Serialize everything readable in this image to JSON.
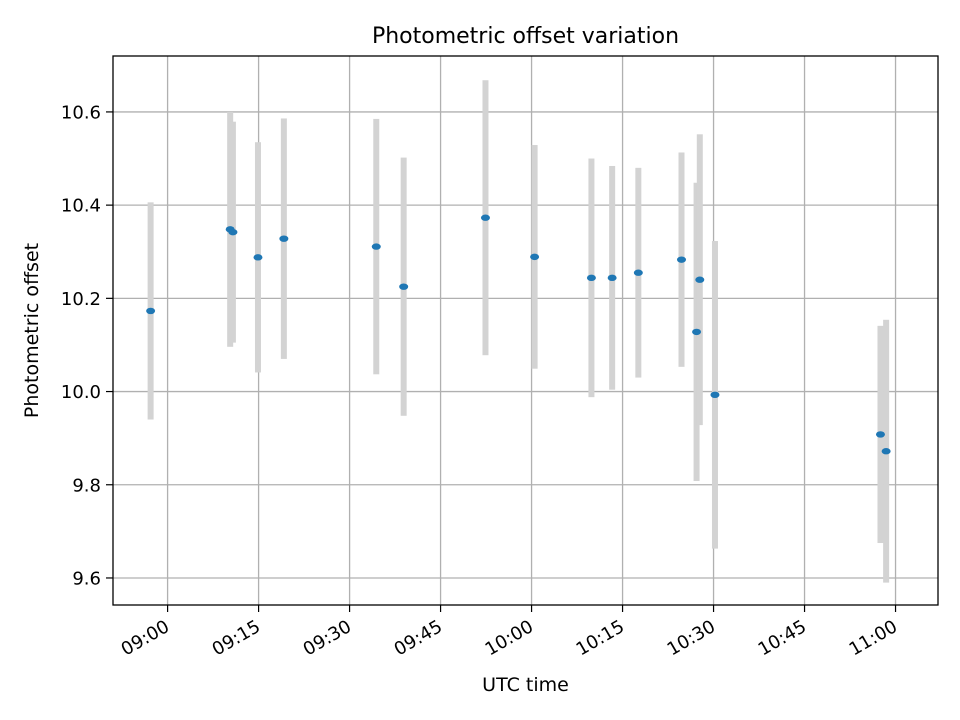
{
  "chart_data": {
    "type": "scatter",
    "title": "Photometric offset variation",
    "xlabel": "UTC time",
    "ylabel": "Photometric offset",
    "x_axis_type": "time",
    "xlim": [
      "08:51",
      "11:07"
    ],
    "ylim": [
      9.542,
      10.72
    ],
    "x_ticks": [
      "09:00",
      "09:15",
      "09:30",
      "09:45",
      "10:00",
      "10:15",
      "10:30",
      "10:45",
      "11:00"
    ],
    "y_ticks": [
      9.6,
      9.8,
      10.0,
      10.2,
      10.4,
      10.6
    ],
    "grid": true,
    "point_color": "#1f77b4",
    "errorbar_color": "#d3d3d3",
    "series": [
      {
        "points": [
          {
            "t": "08:57:12",
            "y": 10.173,
            "err": 0.233
          },
          {
            "t": "09:10:19",
            "y": 10.348,
            "err": 0.252
          },
          {
            "t": "09:10:46",
            "y": 10.342,
            "err": 0.237
          },
          {
            "t": "09:14:54",
            "y": 10.288,
            "err": 0.247
          },
          {
            "t": "09:19:10",
            "y": 10.328,
            "err": 0.258
          },
          {
            "t": "09:34:24",
            "y": 10.311,
            "err": 0.274
          },
          {
            "t": "09:38:55",
            "y": 10.225,
            "err": 0.277
          },
          {
            "t": "09:52:24",
            "y": 10.373,
            "err": 0.295
          },
          {
            "t": "10:00:30",
            "y": 10.289,
            "err": 0.24
          },
          {
            "t": "10:09:52",
            "y": 10.244,
            "err": 0.256
          },
          {
            "t": "10:13:17",
            "y": 10.244,
            "err": 0.24
          },
          {
            "t": "10:17:36",
            "y": 10.255,
            "err": 0.225
          },
          {
            "t": "10:24:43",
            "y": 10.283,
            "err": 0.23
          },
          {
            "t": "10:27:12",
            "y": 10.128,
            "err": 0.32
          },
          {
            "t": "10:27:44",
            "y": 10.24,
            "err": 0.312
          },
          {
            "t": "10:30:14",
            "y": 9.993,
            "err": 0.33
          },
          {
            "t": "10:57:31",
            "y": 9.908,
            "err": 0.233
          },
          {
            "t": "10:58:27",
            "y": 9.872,
            "err": 0.282
          }
        ]
      }
    ]
  }
}
